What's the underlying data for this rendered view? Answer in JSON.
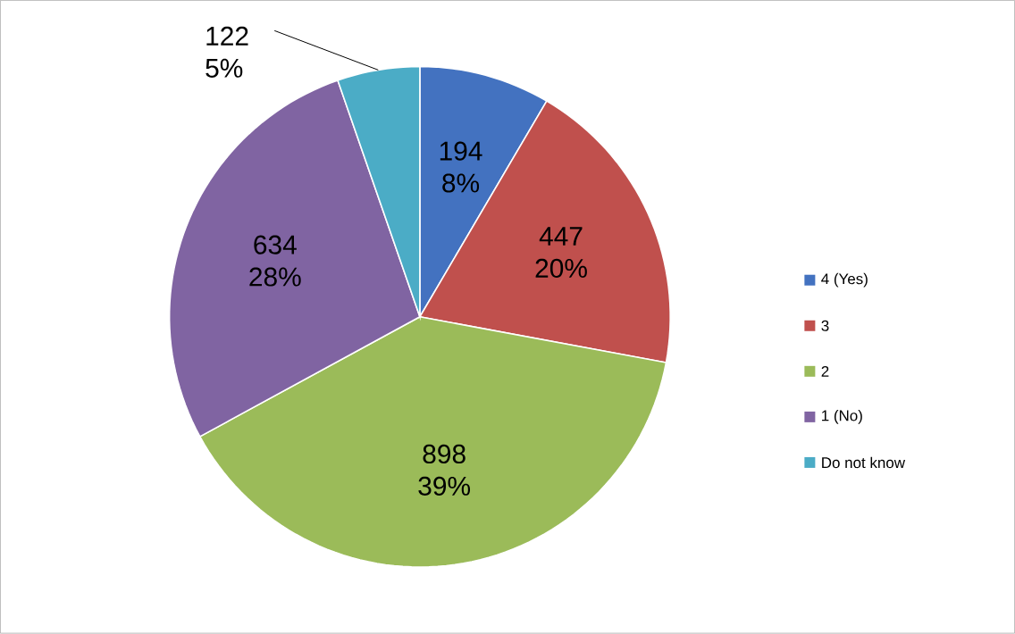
{
  "chart_data": {
    "type": "pie",
    "categories": [
      "4 (Yes)",
      "3",
      "2",
      "1 (No)",
      "Do not know"
    ],
    "values": [
      194,
      447,
      898,
      634,
      122
    ],
    "colors": [
      "#4372c0",
      "#c0504d",
      "#9bbb59",
      "#8064a2",
      "#4bacc6"
    ],
    "value_labels": [
      "194 8%",
      "447 20%",
      "898 39%",
      "634 28%",
      "122 5%"
    ],
    "legend": "right"
  }
}
